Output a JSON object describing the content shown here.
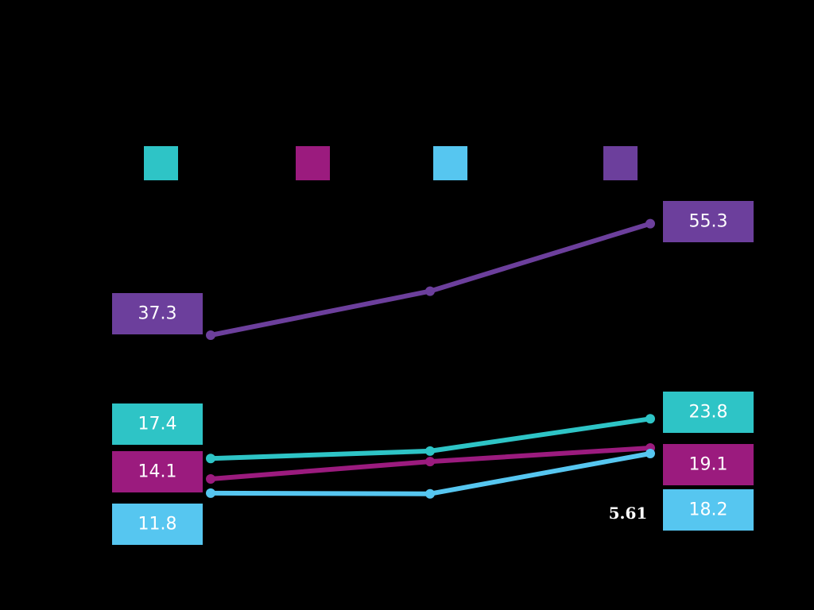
{
  "chart_data": {
    "type": "line",
    "x": [
      "",
      "",
      ""
    ],
    "series": [
      {
        "color": "#2EC4C6",
        "values": [
          17.4,
          18.6,
          23.8
        ]
      },
      {
        "color": "#9B1B7E",
        "values": [
          14.1,
          16.9,
          19.1
        ]
      },
      {
        "color": "#56C6F0",
        "values": [
          11.8,
          11.7,
          18.2
        ]
      },
      {
        "color": "#6C3F9C",
        "values": [
          37.3,
          44.4,
          55.3
        ]
      }
    ],
    "start_labels": [
      "17.4",
      "14.1",
      "11.8",
      "37.3"
    ],
    "end_labels": [
      "23.8",
      "19.1",
      "18.2",
      "55.3"
    ],
    "annotation": "5.61",
    "legend_position": "top",
    "grid": false,
    "background": "#000000"
  }
}
